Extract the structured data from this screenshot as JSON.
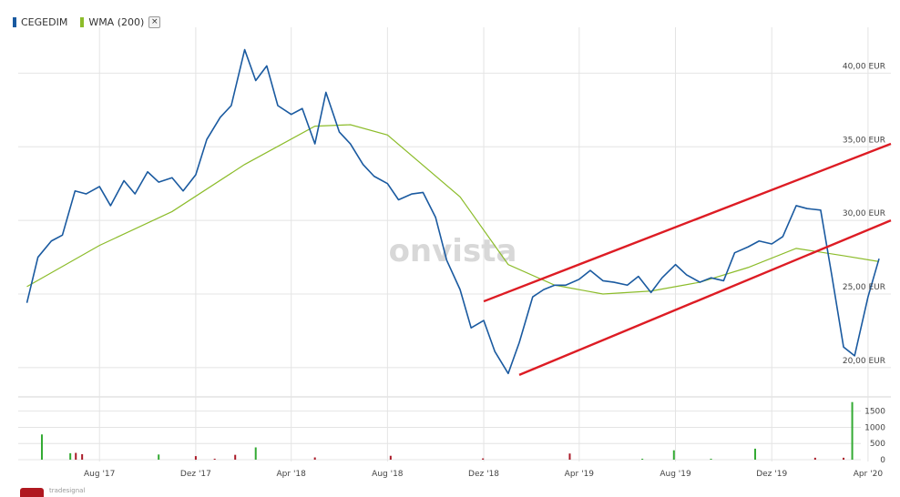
{
  "legend": {
    "series1_name": "CEGEDIM",
    "series1_color": "#1a5aa0",
    "series2_name": "WMA (200)",
    "series2_color": "#8cbc2a",
    "close_icon": "close-icon",
    "close_glyph": "×"
  },
  "watermark": "onvista",
  "brand": {
    "text": "tradesignal"
  },
  "colors": {
    "price": "#1a5aa0",
    "wma": "#8cbc2a",
    "channel": "#dd1c24",
    "vol_up": "#33aa33",
    "vol_down": "#aa1a28",
    "grid": "#e4e4e4"
  },
  "chart_data": [
    {
      "type": "line",
      "x_ticks": [
        "Aug '17",
        "Dez '17",
        "Apr '18",
        "Aug '18",
        "Dez '18",
        "Apr '19",
        "Aug '19",
        "Dez '19",
        "Apr '20"
      ],
      "y_ticks": [
        "40,00 EUR",
        "35,00 EUR",
        "30,00 EUR",
        "25,00 EUR",
        "20,00 EUR"
      ],
      "ylim": [
        19.0,
        42.5
      ],
      "grid": true,
      "series": [
        {
          "name": "CEGEDIM",
          "x": [
            "2017-05-01",
            "2017-05-15",
            "2017-06-01",
            "2017-06-15",
            "2017-07-01",
            "2017-07-15",
            "2017-08-01",
            "2017-08-15",
            "2017-09-01",
            "2017-09-15",
            "2017-10-01",
            "2017-10-15",
            "2017-11-01",
            "2017-11-15",
            "2017-12-01",
            "2017-12-15",
            "2018-01-01",
            "2018-01-15",
            "2018-02-01",
            "2018-02-15",
            "2018-03-01",
            "2018-03-15",
            "2018-04-01",
            "2018-04-15",
            "2018-05-01",
            "2018-05-15",
            "2018-06-01",
            "2018-06-15",
            "2018-07-01",
            "2018-07-15",
            "2018-08-01",
            "2018-08-15",
            "2018-09-01",
            "2018-09-15",
            "2018-10-01",
            "2018-10-15",
            "2018-11-01",
            "2018-11-15",
            "2018-12-01",
            "2018-12-15",
            "2019-01-01",
            "2019-01-15",
            "2019-02-01",
            "2019-02-15",
            "2019-03-01",
            "2019-03-15",
            "2019-04-01",
            "2019-04-15",
            "2019-05-01",
            "2019-05-15",
            "2019-06-01",
            "2019-06-15",
            "2019-07-01",
            "2019-07-15",
            "2019-08-01",
            "2019-08-15",
            "2019-09-01",
            "2019-09-15",
            "2019-10-01",
            "2019-10-15",
            "2019-11-01",
            "2019-11-15",
            "2019-12-01",
            "2019-12-15",
            "2020-01-01",
            "2020-01-15",
            "2020-02-01",
            "2020-02-15",
            "2020-03-01",
            "2020-03-15",
            "2020-04-01",
            "2020-04-15"
          ],
          "y": [
            24.4,
            27.5,
            28.6,
            29.0,
            32.0,
            31.8,
            32.3,
            31.0,
            32.7,
            31.8,
            33.3,
            32.6,
            32.9,
            32.0,
            33.1,
            35.5,
            37.0,
            37.8,
            41.6,
            39.5,
            40.5,
            37.8,
            37.2,
            37.6,
            35.2,
            38.7,
            36.0,
            35.2,
            33.8,
            33.0,
            32.5,
            31.4,
            31.8,
            31.9,
            30.2,
            27.3,
            25.3,
            22.7,
            23.2,
            21.1,
            19.6,
            21.7,
            24.8,
            25.3,
            25.6,
            25.6,
            26.0,
            26.6,
            25.9,
            25.8,
            25.6,
            26.2,
            25.1,
            26.1,
            27.0,
            26.3,
            25.8,
            26.1,
            25.9,
            27.8,
            28.2,
            28.6,
            28.4,
            28.9,
            31.0,
            30.8,
            30.7,
            26.3,
            21.4,
            20.8,
            24.8,
            27.4
          ]
        },
        {
          "name": "WMA (200)",
          "x": [
            "2017-05-01",
            "2017-08-01",
            "2017-11-01",
            "2018-02-01",
            "2018-05-01",
            "2018-06-15",
            "2018-08-01",
            "2018-11-01",
            "2019-01-01",
            "2019-03-01",
            "2019-05-01",
            "2019-07-01",
            "2019-09-01",
            "2019-11-01",
            "2020-01-01",
            "2020-03-01",
            "2020-04-15"
          ],
          "y": [
            25.5,
            28.3,
            30.6,
            33.8,
            36.4,
            36.5,
            35.8,
            31.6,
            27.0,
            25.6,
            25.0,
            25.2,
            25.8,
            26.8,
            28.1,
            27.6,
            27.2
          ]
        }
      ],
      "trend_channel": [
        {
          "x": [
            "2018-12-01",
            "2020-04-30"
          ],
          "y": [
            24.5,
            35.2
          ]
        },
        {
          "x": [
            "2019-01-15",
            "2020-04-30"
          ],
          "y": [
            19.5,
            30.0
          ]
        }
      ]
    },
    {
      "type": "bar",
      "y_ticks": [
        "1500",
        "1000",
        "500",
        "0"
      ],
      "ylim": [
        0,
        1800
      ],
      "series": [
        {
          "name": "volume",
          "x": [
            "2017-05-20",
            "2017-06-25",
            "2017-07-02",
            "2017-07-10",
            "2017-10-15",
            "2017-12-01",
            "2017-12-25",
            "2018-01-20",
            "2018-02-15",
            "2018-05-01",
            "2018-08-05",
            "2018-11-30",
            "2019-03-20",
            "2019-06-20",
            "2019-07-30",
            "2019-09-15",
            "2019-11-10",
            "2020-01-25",
            "2020-03-01",
            "2020-03-12"
          ],
          "y": [
            780,
            200,
            210,
            170,
            160,
            110,
            30,
            150,
            380,
            70,
            120,
            40,
            190,
            30,
            290,
            30,
            340,
            60,
            60,
            1780
          ],
          "direction": [
            "up",
            "up",
            "down",
            "down",
            "up",
            "down",
            "down",
            "down",
            "up",
            "down",
            "down",
            "down",
            "down",
            "up",
            "up",
            "up",
            "up",
            "down",
            "down",
            "up"
          ]
        }
      ]
    }
  ]
}
